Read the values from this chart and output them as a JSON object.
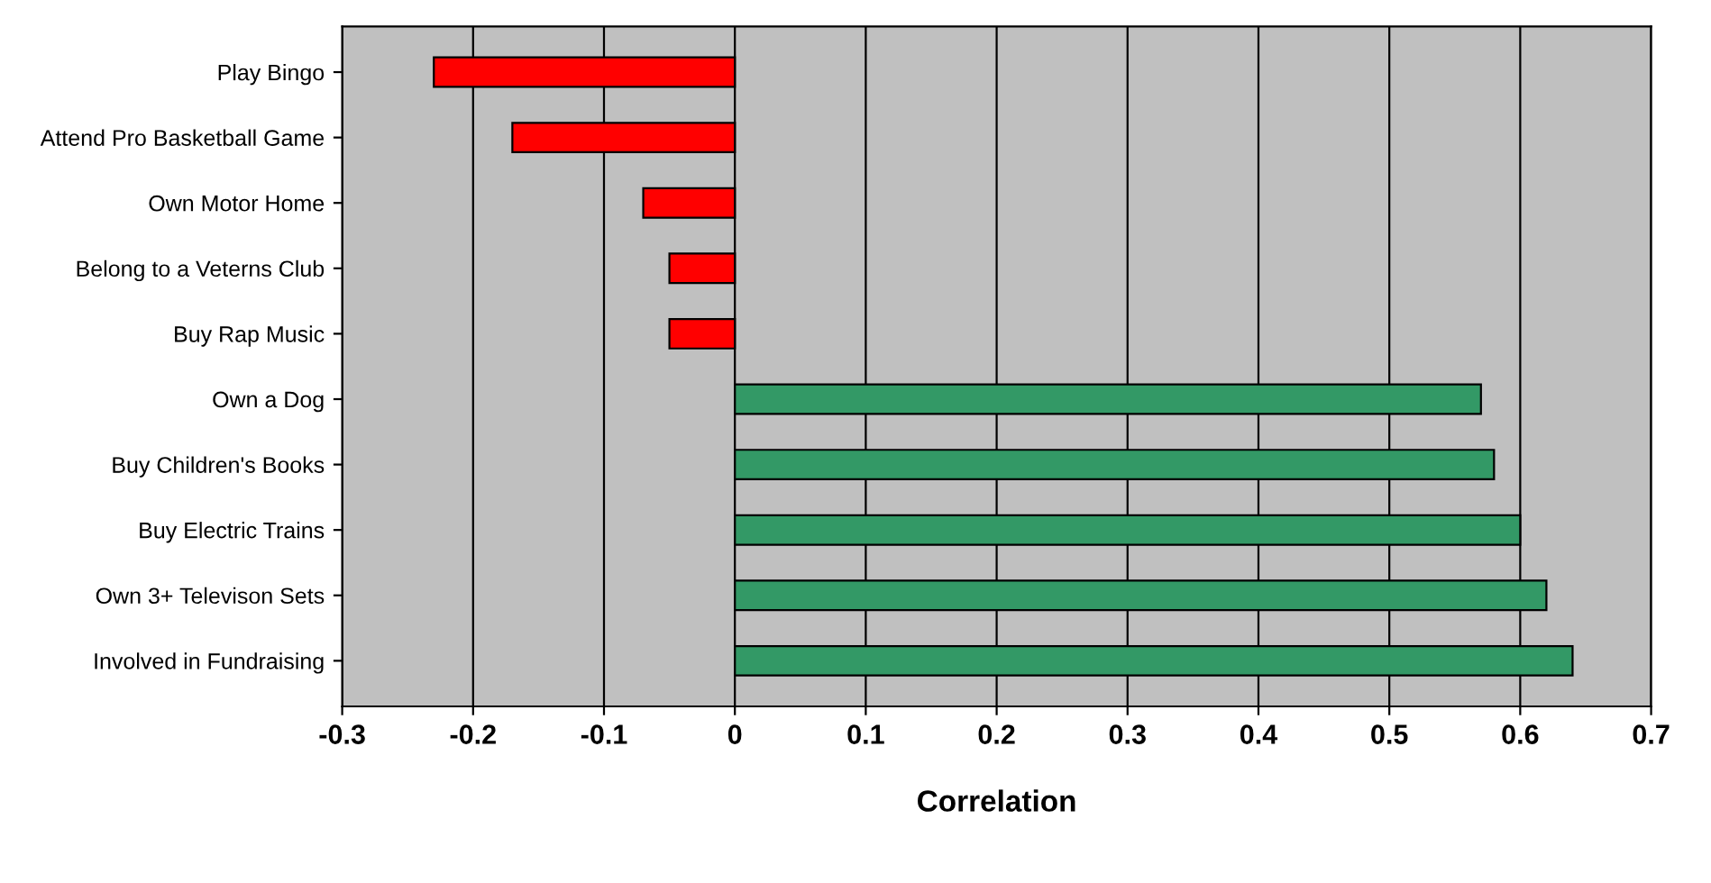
{
  "chart_data": {
    "type": "bar",
    "orientation": "horizontal",
    "xlabel": "Correlation",
    "categories": [
      "Play Bingo",
      "Attend Pro Basketball Game",
      "Own Motor Home",
      "Belong to a Veterns Club",
      "Buy Rap Music",
      "Own a Dog",
      "Buy Children's Books",
      "Buy Electric Trains",
      "Own 3+ Televison Sets",
      "Involved in Fundraising"
    ],
    "values": [
      -0.23,
      -0.17,
      -0.07,
      -0.05,
      -0.05,
      0.57,
      0.58,
      0.6,
      0.62,
      0.64
    ],
    "colors": [
      "#ff0000",
      "#ff0000",
      "#ff0000",
      "#ff0000",
      "#ff0000",
      "#339966",
      "#339966",
      "#339966",
      "#339966",
      "#339966"
    ],
    "xlim": [
      -0.3,
      0.7
    ],
    "xticks": [
      -0.3,
      -0.2,
      -0.1,
      0,
      0.1,
      0.2,
      0.3,
      0.4,
      0.5,
      0.6,
      0.7
    ],
    "grid": "x",
    "legend": false
  }
}
